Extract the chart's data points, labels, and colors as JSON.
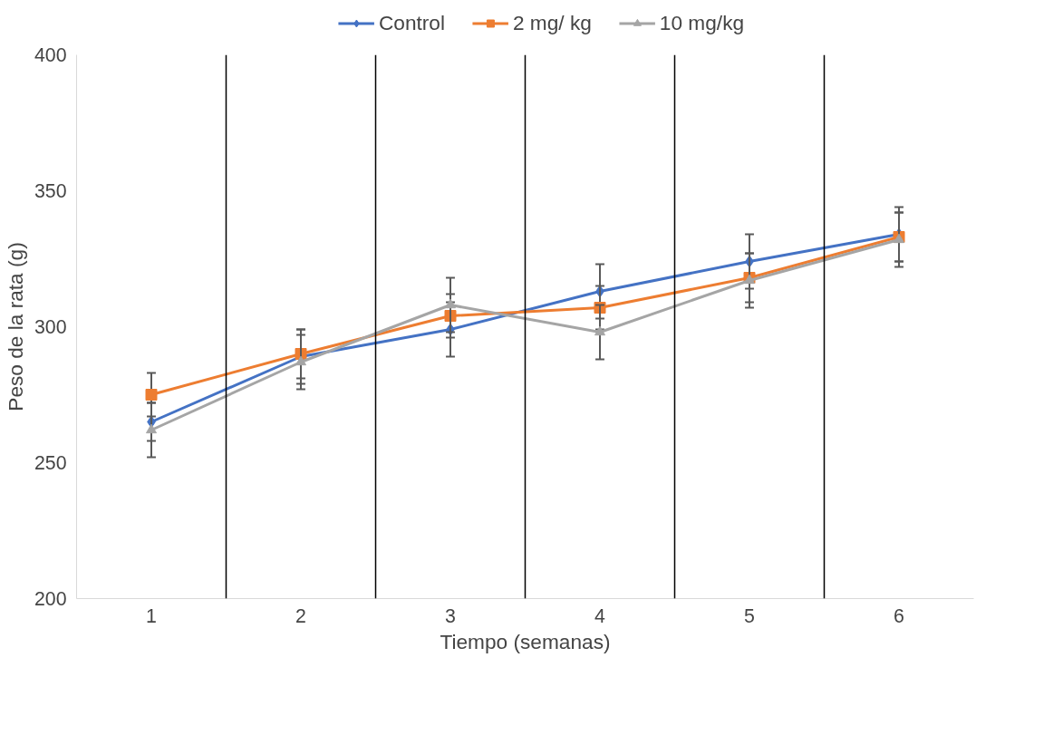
{
  "chart_data": {
    "type": "line",
    "xlabel": "Tiempo (semanas)",
    "ylabel": "Peso de la rata (g)",
    "x": [
      1,
      2,
      3,
      4,
      5,
      6
    ],
    "xlim": [
      0.5,
      6.5
    ],
    "xticks": [
      1,
      2,
      3,
      4,
      5,
      6
    ],
    "ylim": [
      200,
      400
    ],
    "yticks": [
      200,
      250,
      300,
      350,
      400
    ],
    "grid": false,
    "legend": "top",
    "series": [
      {
        "name": "Control",
        "color": "#4472c4",
        "marker": "diamond",
        "values": [
          265,
          289,
          299,
          313,
          324,
          334
        ],
        "errors": [
          7,
          10,
          10,
          10,
          10,
          10
        ]
      },
      {
        "name": "2 mg/ kg",
        "color": "#ed7d31",
        "marker": "square",
        "values": [
          275,
          290,
          304,
          307,
          318,
          333
        ],
        "errors": [
          8,
          9,
          8,
          8,
          9,
          9
        ]
      },
      {
        "name": "10 mg/kg",
        "color": "#a5a5a5",
        "marker": "triangle",
        "values": [
          262,
          287,
          308,
          298,
          317,
          332
        ],
        "errors": [
          10,
          10,
          10,
          10,
          10,
          10
        ]
      }
    ],
    "ref_lines": [
      {
        "axis": "x",
        "value": 1.5,
        "color": "#000000"
      },
      {
        "axis": "x",
        "value": 2.5,
        "color": "#000000"
      },
      {
        "axis": "x",
        "value": 3.5,
        "color": "#000000"
      },
      {
        "axis": "x",
        "value": 4.5,
        "color": "#000000"
      },
      {
        "axis": "x",
        "value": 5.5,
        "color": "#000000"
      }
    ]
  }
}
